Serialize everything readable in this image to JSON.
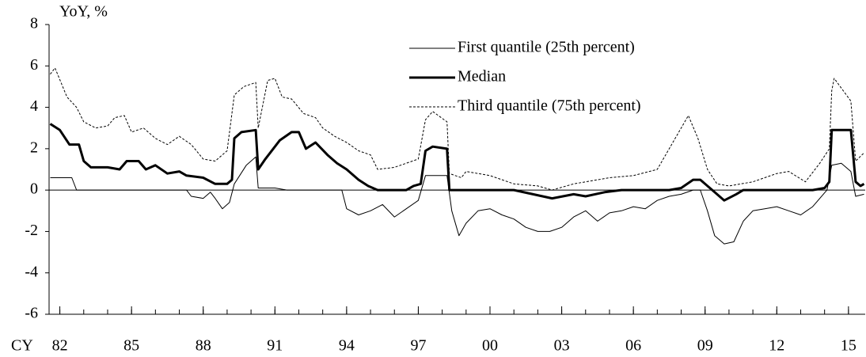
{
  "chart_data": {
    "type": "line",
    "ylabel": "YoY, %",
    "xlabel": "CY",
    "xlim": [
      1981.55,
      2015.7
    ],
    "ylim": [
      -6,
      8
    ],
    "yticks": [
      -6,
      -4,
      -2,
      0,
      2,
      4,
      6,
      8
    ],
    "xticks": [
      {
        "value": 1982,
        "label": "82"
      },
      {
        "value": 1985,
        "label": "85"
      },
      {
        "value": 1988,
        "label": "88"
      },
      {
        "value": 1991,
        "label": "91"
      },
      {
        "value": 1994,
        "label": "94"
      },
      {
        "value": 1997,
        "label": "97"
      },
      {
        "value": 2000,
        "label": "00"
      },
      {
        "value": 2003,
        "label": "03"
      },
      {
        "value": 2006,
        "label": "06"
      },
      {
        "value": 2009,
        "label": "09"
      },
      {
        "value": 2012,
        "label": "12"
      },
      {
        "value": 2015,
        "label": "15"
      }
    ],
    "series": [
      {
        "name": "First quantile (25th percent)",
        "color": "#000000",
        "width": 1,
        "dashed": false,
        "x": [
          1981.6,
          1982.5,
          1982.7,
          1983,
          1987.3,
          1987.5,
          1988,
          1988.3,
          1988.5,
          1988.8,
          1989.1,
          1989.3,
          1989.8,
          1990.2,
          1990.3,
          1991,
          1991.5,
          1993.8,
          1994,
          1994.5,
          1995,
          1995.5,
          1996,
          1996.5,
          1997,
          1997.3,
          1998.2,
          1998.4,
          1998.7,
          1999,
          1999.5,
          2000,
          2000.5,
          2001,
          2001.5,
          2002,
          2002.5,
          2003,
          2003.5,
          2004,
          2004.5,
          2005,
          2005.5,
          2006,
          2006.5,
          2007,
          2007.5,
          2008,
          2008.5,
          2008.8,
          2009.1,
          2009.4,
          2009.8,
          2010.2,
          2010.6,
          2011,
          2011.5,
          2012,
          2012.5,
          2013,
          2013.5,
          2014.1,
          2014.3,
          2014.7,
          2015.1,
          2015.3,
          2015.65
        ],
        "values": [
          0.6,
          0.6,
          0,
          0,
          0,
          -0.3,
          -0.4,
          -0.1,
          -0.4,
          -0.9,
          -0.6,
          0.3,
          1.2,
          1.6,
          0.1,
          0.1,
          0,
          0,
          -0.9,
          -1.2,
          -1.0,
          -0.7,
          -1.3,
          -0.9,
          -0.5,
          0.7,
          0.7,
          -1.0,
          -2.2,
          -1.6,
          -1.0,
          -0.9,
          -1.2,
          -1.4,
          -1.8,
          -2.0,
          -2.0,
          -1.8,
          -1.3,
          -1.0,
          -1.5,
          -1.1,
          -1.0,
          -0.8,
          -0.9,
          -0.5,
          -0.3,
          -0.2,
          0,
          0,
          -1.0,
          -2.2,
          -2.6,
          -2.5,
          -1.5,
          -1.0,
          -0.9,
          -0.8,
          -1.0,
          -1.2,
          -0.8,
          0,
          1.2,
          1.3,
          0.9,
          -0.3,
          -0.2
        ]
      },
      {
        "name": "Median",
        "color": "#000000",
        "width": 3,
        "dashed": false,
        "x": [
          1981.6,
          1982.0,
          1982.4,
          1982.8,
          1983.0,
          1983.3,
          1984,
          1984.5,
          1984.8,
          1985.3,
          1985.6,
          1986,
          1986.5,
          1987,
          1987.3,
          1988,
          1988.5,
          1989.0,
          1989.2,
          1989.3,
          1989.6,
          1990.2,
          1990.3,
          1990.6,
          1991.2,
          1991.7,
          1992,
          1992.3,
          1992.7,
          1993.2,
          1993.6,
          1994,
          1994.5,
          1994.9,
          1995.3,
          1996.5,
          1996.8,
          1997.1,
          1997.3,
          1997.6,
          1998.2,
          1998.3,
          2001,
          2001.8,
          2002.6,
          2003.5,
          2004,
          2004.8,
          2005.5,
          2007.5,
          2008.0,
          2008.5,
          2008.8,
          2009.3,
          2009.8,
          2010.3,
          2010.6,
          2013.5,
          2014.0,
          2014.2,
          2014.3,
          2015.1,
          2015.3,
          2015.5,
          2015.65
        ],
        "values": [
          3.2,
          2.9,
          2.2,
          2.2,
          1.4,
          1.1,
          1.1,
          1.0,
          1.4,
          1.4,
          1.0,
          1.2,
          0.8,
          0.9,
          0.7,
          0.6,
          0.3,
          0.3,
          0.5,
          2.5,
          2.8,
          2.9,
          1.0,
          1.5,
          2.4,
          2.8,
          2.8,
          2.0,
          2.3,
          1.7,
          1.3,
          1.0,
          0.5,
          0.2,
          0.0,
          0.0,
          0.2,
          0.3,
          1.9,
          2.1,
          2.0,
          0.0,
          0,
          -0.2,
          -0.4,
          -0.2,
          -0.3,
          -0.1,
          0,
          0,
          0.1,
          0.5,
          0.5,
          0,
          -0.5,
          -0.2,
          0,
          0,
          0.1,
          0.4,
          2.9,
          2.9,
          0.4,
          0.2,
          0.3
        ]
      },
      {
        "name": "Third quantile (75th percent)",
        "color": "#000000",
        "width": 1,
        "dashed": true,
        "x": [
          1981.6,
          1981.8,
          1982.3,
          1982.7,
          1983,
          1983.5,
          1984,
          1984.3,
          1984.7,
          1985,
          1985.5,
          1986,
          1986.5,
          1987,
          1987.5,
          1988,
          1988.5,
          1989.0,
          1989.3,
          1989.7,
          1990.2,
          1990.3,
          1990.7,
          1991,
          1991.3,
          1991.7,
          1992.2,
          1992.7,
          1993,
          1993.5,
          1994,
          1994.5,
          1995,
          1995.3,
          1996,
          1996.5,
          1997,
          1997.3,
          1997.6,
          1998.2,
          1998.3,
          1998.8,
          1999,
          2000,
          2001,
          2002,
          2002.6,
          2003.5,
          2004,
          2005,
          2006,
          2007,
          2007.5,
          2008,
          2008.3,
          2008.7,
          2009.1,
          2009.5,
          2010,
          2011,
          2012,
          2012.5,
          2013.2,
          2013.8,
          2014.2,
          2014.3,
          2014.4,
          2015.1,
          2015.3,
          2015.65
        ],
        "values": [
          5.6,
          5.9,
          4.5,
          4.0,
          3.3,
          3.0,
          3.1,
          3.5,
          3.6,
          2.8,
          3.0,
          2.5,
          2.2,
          2.6,
          2.2,
          1.5,
          1.4,
          1.9,
          4.6,
          5.0,
          5.2,
          3.0,
          5.3,
          5.4,
          4.5,
          4.4,
          3.7,
          3.5,
          3.0,
          2.6,
          2.3,
          1.9,
          1.7,
          1.0,
          1.1,
          1.3,
          1.5,
          3.4,
          3.8,
          3.3,
          0.8,
          0.6,
          0.9,
          0.7,
          0.3,
          0.2,
          0,
          0.3,
          0.4,
          0.6,
          0.7,
          1.0,
          2.0,
          3.0,
          3.6,
          2.5,
          1.0,
          0.3,
          0.2,
          0.4,
          0.8,
          0.9,
          0.4,
          1.3,
          2.0,
          4.8,
          5.4,
          4.3,
          1.4,
          1.8
        ]
      }
    ]
  }
}
